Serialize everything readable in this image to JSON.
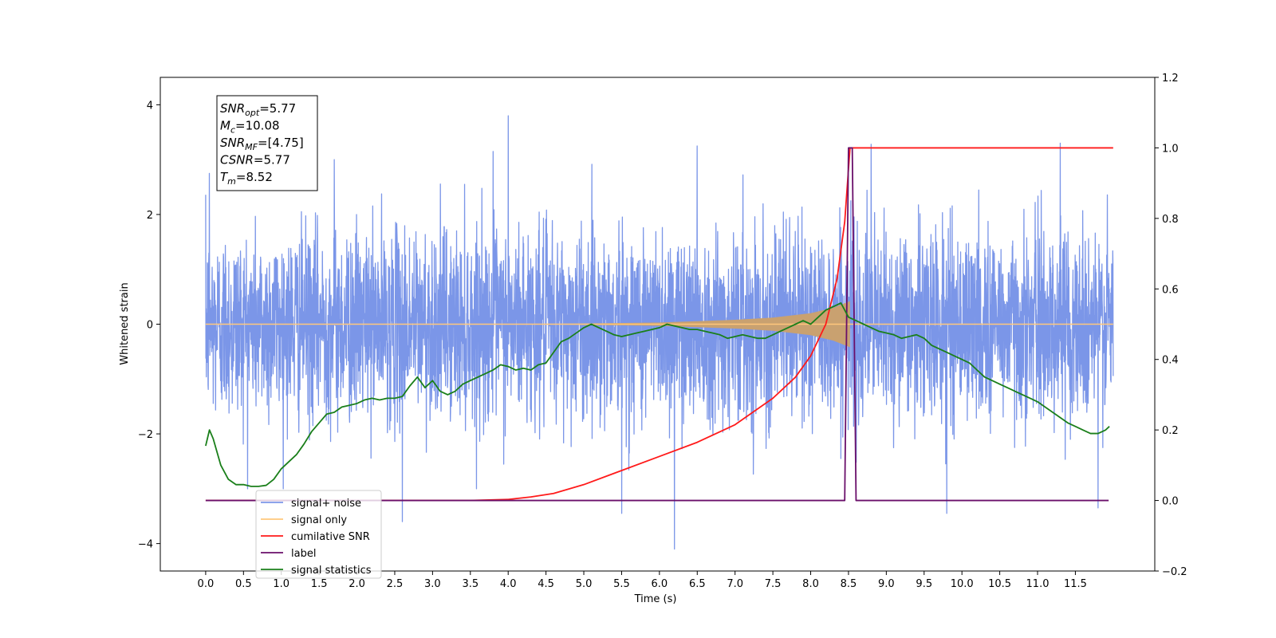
{
  "chart_data": {
    "type": "line",
    "xlabel": "Time (s)",
    "ylabel": "Whitened strain",
    "xlim": [
      -0.6,
      12.55
    ],
    "ylim": [
      -4.5,
      4.5
    ],
    "y2lim": [
      -0.2,
      1.2
    ],
    "x_ticks": [
      0.0,
      0.5,
      1.0,
      1.5,
      2.0,
      2.5,
      3.0,
      3.5,
      4.0,
      4.5,
      5.0,
      5.5,
      6.0,
      6.5,
      7.0,
      7.5,
      8.0,
      8.5,
      9.0,
      9.5,
      10.0,
      10.5,
      11.0,
      11.5
    ],
    "x_tick_labels": [
      "0.0",
      "0.5",
      "1.0",
      "1.5",
      "2.0",
      "2.5",
      "3.0",
      "3.5",
      "4.0",
      "4.5",
      "5.0",
      "5.5",
      "6.0",
      "6.5",
      "7.0",
      "7.5",
      "8.0",
      "8.5",
      "9.0",
      "9.5",
      "10.0",
      "10.5",
      "11.0",
      "11.5"
    ],
    "y_ticks": [
      -4,
      -2,
      0,
      2,
      4
    ],
    "y_tick_labels": [
      "−4",
      "−2",
      "0",
      "2",
      "4"
    ],
    "y2_ticks": [
      -0.2,
      0.0,
      0.2,
      0.4,
      0.6,
      0.8,
      1.0,
      1.2
    ],
    "y2_tick_labels": [
      "−0.2",
      "0.0",
      "0.2",
      "0.4",
      "0.6",
      "0.8",
      "1.0",
      "1.2"
    ],
    "annotation_box": [
      {
        "main": "SNR",
        "sub": "opt",
        "value": "=5.77"
      },
      {
        "main": "M",
        "sub": "c",
        "value": "=10.08"
      },
      {
        "main": "SNR",
        "sub": "MF",
        "value": "=[4.75]"
      },
      {
        "main": "CSNR",
        "sub": "",
        "value": "=5.77"
      },
      {
        "main": "T",
        "sub": "m",
        "value": "=8.52"
      }
    ],
    "legend": {
      "placement": "lower-left",
      "entries": [
        {
          "label": "signal+ noise",
          "color": "#7b96e8"
        },
        {
          "label": "signal only",
          "color": "#ffc87c"
        },
        {
          "label": "cumilative SNR",
          "color": "#ff1a1a"
        },
        {
          "label": "label",
          "color": "#6a0f6a"
        },
        {
          "label": "signal statistics",
          "color": "#1a7f1a"
        }
      ]
    },
    "series": [
      {
        "name": "signal+ noise",
        "axis": "left",
        "color": "#7b96e8",
        "noise_std": 0.85,
        "x_range": [
          0.0,
          12.0
        ],
        "spikes": [
          [
            4.0,
            3.8
          ],
          [
            6.2,
            -4.1
          ],
          [
            0.05,
            2.75
          ],
          [
            2.6,
            -3.6
          ],
          [
            11.3,
            3.3
          ],
          [
            9.8,
            -3.45
          ],
          [
            11.8,
            -3.35
          ],
          [
            5.5,
            -3.45
          ],
          [
            8.8,
            3.28
          ],
          [
            3.8,
            3.15
          ],
          [
            6.5,
            3.25
          ],
          [
            1.7,
            3.0
          ]
        ]
      },
      {
        "name": "signal only",
        "axis": "left",
        "color": "#ffc87c",
        "amplitude_env": [
          [
            0.0,
            0.0
          ],
          [
            4.5,
            0.005
          ],
          [
            6.0,
            0.03
          ],
          [
            7.0,
            0.08
          ],
          [
            7.5,
            0.12
          ],
          [
            8.0,
            0.2
          ],
          [
            8.3,
            0.3
          ],
          [
            8.52,
            0.42
          ]
        ],
        "fill_color": "#c9a170"
      },
      {
        "name": "cumilative SNR",
        "axis": "right",
        "color": "#ff1a1a",
        "x": [
          0.0,
          3.5,
          4.0,
          4.3,
          4.6,
          5.0,
          5.5,
          6.0,
          6.5,
          7.0,
          7.5,
          7.8,
          8.0,
          8.2,
          8.35,
          8.45,
          8.52,
          8.53,
          12.0
        ],
        "y": [
          0.0,
          0.0,
          0.003,
          0.01,
          0.02,
          0.045,
          0.085,
          0.125,
          0.165,
          0.215,
          0.29,
          0.35,
          0.41,
          0.5,
          0.63,
          0.79,
          1.0,
          1.0,
          1.0
        ]
      },
      {
        "name": "label",
        "axis": "right",
        "color": "#6a0f6a",
        "x": [
          0.0,
          8.45,
          8.5,
          8.55,
          8.6,
          11.94
        ],
        "y": [
          0.0,
          0.0,
          1.0,
          1.0,
          0.0,
          0.0
        ]
      },
      {
        "name": "signal statistics",
        "axis": "right",
        "color": "#1a7f1a",
        "x": [
          0.0,
          0.05,
          0.1,
          0.2,
          0.3,
          0.4,
          0.5,
          0.6,
          0.7,
          0.8,
          0.9,
          1.0,
          1.1,
          1.2,
          1.3,
          1.4,
          1.5,
          1.6,
          1.7,
          1.8,
          1.9,
          2.0,
          2.1,
          2.2,
          2.3,
          2.4,
          2.5,
          2.6,
          2.7,
          2.8,
          2.9,
          3.0,
          3.1,
          3.2,
          3.3,
          3.4,
          3.5,
          3.6,
          3.7,
          3.8,
          3.9,
          4.0,
          4.1,
          4.2,
          4.3,
          4.4,
          4.5,
          4.6,
          4.7,
          4.8,
          4.9,
          5.0,
          5.1,
          5.2,
          5.3,
          5.4,
          5.5,
          5.6,
          5.7,
          5.8,
          5.9,
          6.0,
          6.1,
          6.2,
          6.3,
          6.4,
          6.5,
          6.6,
          6.7,
          6.8,
          6.9,
          7.0,
          7.1,
          7.2,
          7.3,
          7.4,
          7.5,
          7.6,
          7.7,
          7.8,
          7.9,
          8.0,
          8.1,
          8.2,
          8.3,
          8.4,
          8.5,
          8.6,
          8.7,
          8.8,
          8.9,
          9.0,
          9.1,
          9.2,
          9.3,
          9.4,
          9.5,
          9.6,
          9.7,
          9.8,
          9.9,
          10.0,
          10.1,
          10.2,
          10.3,
          10.4,
          10.5,
          10.6,
          10.7,
          10.8,
          10.9,
          11.0,
          11.1,
          11.2,
          11.3,
          11.4,
          11.5,
          11.6,
          11.7,
          11.8,
          11.9,
          11.95
        ],
        "y": [
          0.155,
          0.2,
          0.175,
          0.1,
          0.06,
          0.045,
          0.045,
          0.04,
          0.04,
          0.043,
          0.06,
          0.09,
          0.11,
          0.13,
          0.16,
          0.195,
          0.22,
          0.245,
          0.25,
          0.265,
          0.27,
          0.275,
          0.285,
          0.29,
          0.285,
          0.29,
          0.29,
          0.295,
          0.325,
          0.35,
          0.32,
          0.34,
          0.31,
          0.3,
          0.31,
          0.33,
          0.34,
          0.35,
          0.36,
          0.37,
          0.385,
          0.38,
          0.37,
          0.375,
          0.37,
          0.385,
          0.39,
          0.42,
          0.45,
          0.46,
          0.475,
          0.49,
          0.5,
          0.49,
          0.48,
          0.47,
          0.465,
          0.47,
          0.475,
          0.48,
          0.485,
          0.49,
          0.5,
          0.495,
          0.49,
          0.485,
          0.485,
          0.48,
          0.475,
          0.47,
          0.46,
          0.465,
          0.47,
          0.465,
          0.46,
          0.46,
          0.47,
          0.48,
          0.49,
          0.5,
          0.51,
          0.5,
          0.52,
          0.54,
          0.55,
          0.56,
          0.52,
          0.51,
          0.5,
          0.49,
          0.48,
          0.475,
          0.47,
          0.46,
          0.465,
          0.47,
          0.46,
          0.44,
          0.43,
          0.42,
          0.41,
          0.4,
          0.39,
          0.37,
          0.35,
          0.34,
          0.33,
          0.32,
          0.31,
          0.3,
          0.29,
          0.28,
          0.265,
          0.25,
          0.235,
          0.22,
          0.21,
          0.2,
          0.19,
          0.19,
          0.2,
          0.21
        ]
      }
    ]
  }
}
